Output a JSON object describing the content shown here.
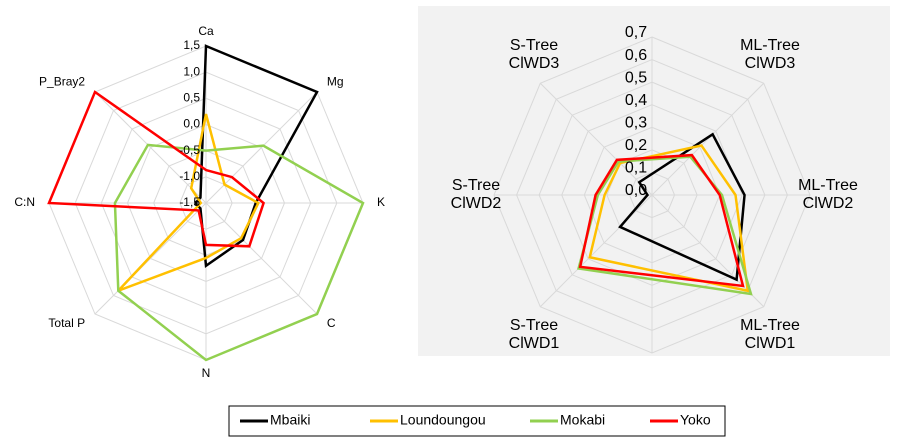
{
  "chart_data": [
    {
      "type": "radar",
      "categories": [
        "Ca",
        "Mg",
        "K",
        "C",
        "N",
        "Total P",
        "C:N",
        "P_Bray2"
      ],
      "ylim": [
        -1.5,
        1.5
      ],
      "yticks": [
        {
          "value": -1.5,
          "label": "-1,5"
        },
        {
          "value": -1,
          "label": "-1,0"
        },
        {
          "value": -0.5,
          "label": "-0,5"
        },
        {
          "value": 0,
          "label": "0,0"
        },
        {
          "value": 0.5,
          "label": "0,5"
        },
        {
          "value": 1,
          "label": "1,0"
        },
        {
          "value": 1.5,
          "label": "1,5"
        }
      ],
      "series": [
        {
          "name": "Mbaiki",
          "color": "#000000",
          "values": [
            1.5,
            1.5,
            -0.55,
            -0.5,
            -0.3,
            -1.35,
            -1.3,
            -1.35
          ]
        },
        {
          "name": "Loundoungou",
          "color": "#ffc000",
          "values": [
            0.2,
            -1.0,
            -0.5,
            -0.55,
            -0.45,
            0.87,
            -1.4,
            -1.1
          ]
        },
        {
          "name": "Mokabi",
          "color": "#92d050",
          "values": [
            -0.5,
            0.05,
            1.5,
            1.5,
            1.5,
            0.87,
            0.24,
            0.07
          ]
        },
        {
          "name": "Yoko",
          "color": "#ff0000",
          "values": [
            -0.87,
            -0.8,
            -0.4,
            -0.33,
            -0.7,
            -1.3,
            1.5,
            1.5
          ]
        }
      ]
    },
    {
      "type": "radar",
      "categories": [
        "ML-Tree ClWD3",
        "ML-Tree ClWD2",
        "ML-Tree ClWD1",
        "S-Tree ClWD1",
        "S-Tree ClWD2",
        "S-Tree ClWD3"
      ],
      "ylim": [
        0,
        0.7
      ],
      "yticks": [
        {
          "value": 0,
          "label": "0,0"
        },
        {
          "value": 0.1,
          "label": "0,1"
        },
        {
          "value": 0.2,
          "label": "0,2"
        },
        {
          "value": 0.3,
          "label": "0,3"
        },
        {
          "value": 0.4,
          "label": "0,4"
        },
        {
          "value": 0.5,
          "label": "0,5"
        },
        {
          "value": 0.6,
          "label": "0,6"
        },
        {
          "value": 0.7,
          "label": "0,7"
        }
      ],
      "series": [
        {
          "color": "#000000",
          "values": [
            0.38,
            0.41,
            0.53,
            0.2,
            0.02,
            0.08
          ]
        },
        {
          "color": "#ffc000",
          "values": [
            0.31,
            0.37,
            0.6,
            0.39,
            0.21,
            0.2
          ]
        },
        {
          "color": "#92d050",
          "values": [
            0.24,
            0.31,
            0.62,
            0.46,
            0.24,
            0.21
          ]
        },
        {
          "color": "#ff0000",
          "values": [
            0.25,
            0.3,
            0.57,
            0.45,
            0.25,
            0.22
          ]
        }
      ]
    }
  ]
}
